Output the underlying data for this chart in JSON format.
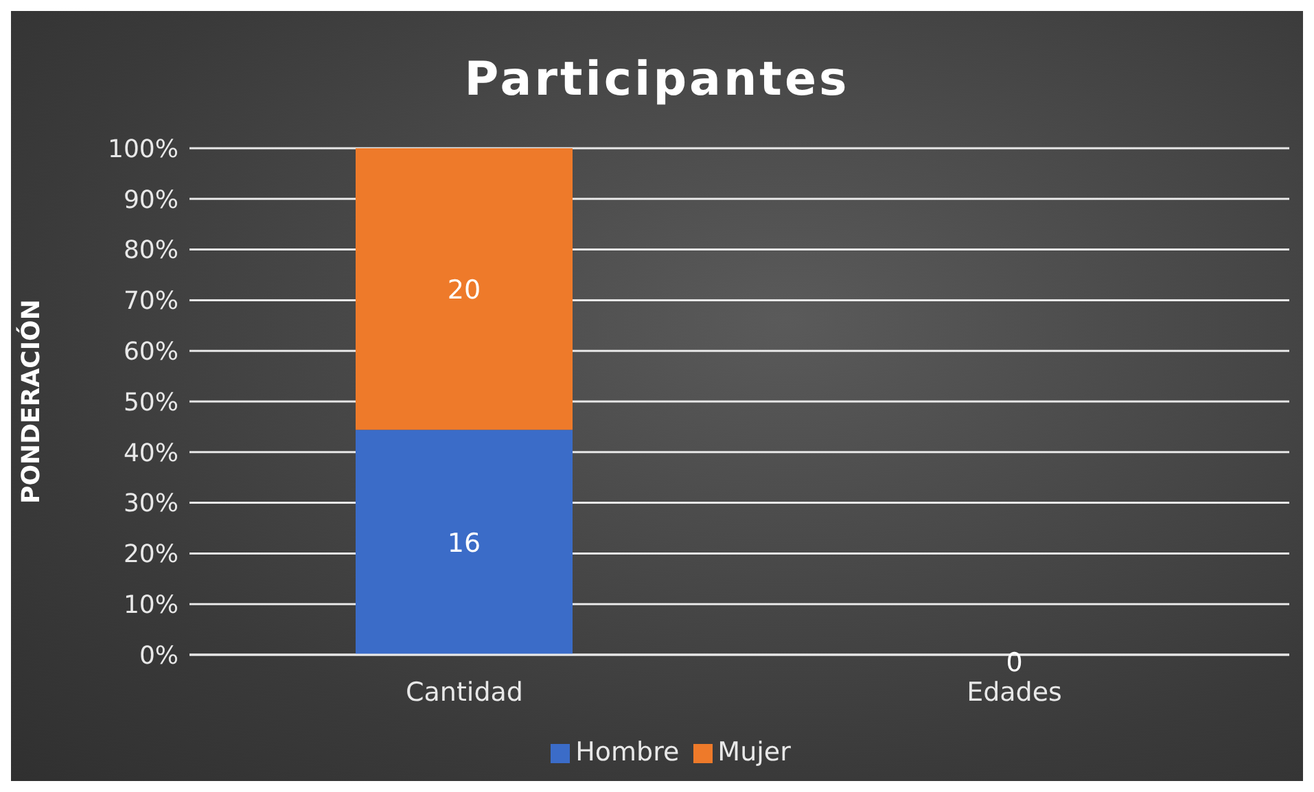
{
  "chart_data": {
    "type": "bar",
    "title": "Participantes",
    "ylabel": "PONDERACIÓN",
    "categories": [
      "Cantidad",
      "Edades"
    ],
    "stacked": true,
    "ylim": [
      0,
      100
    ],
    "yticks": [
      {
        "value": 0,
        "label": "0%"
      },
      {
        "value": 10,
        "label": "10%"
      },
      {
        "value": 20,
        "label": "20%"
      },
      {
        "value": 30,
        "label": "30%"
      },
      {
        "value": 40,
        "label": "40%"
      },
      {
        "value": 50,
        "label": "50%"
      },
      {
        "value": 60,
        "label": "60%"
      },
      {
        "value": 70,
        "label": "70%"
      },
      {
        "value": 80,
        "label": "80%"
      },
      {
        "value": 90,
        "label": "90%"
      },
      {
        "value": 100,
        "label": "100%"
      }
    ],
    "grid": "y",
    "legend": "bottom",
    "series": [
      {
        "name": "Hombre",
        "color": "#3b6cc8",
        "values": [
          44.4,
          0
        ]
      },
      {
        "name": "Mujer",
        "color": "#ee7a2a",
        "values": [
          55.6,
          0
        ]
      }
    ],
    "annotations": [
      "16",
      "20",
      "0"
    ]
  }
}
